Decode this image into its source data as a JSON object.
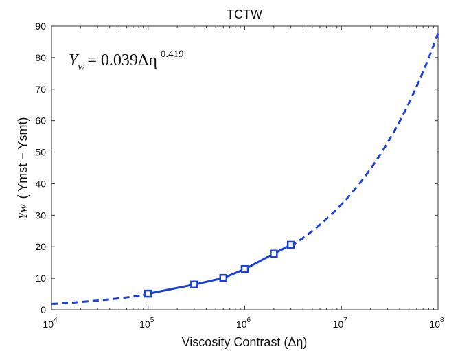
{
  "chart_data": {
    "type": "line",
    "title": "TCTW",
    "xlabel": "Viscosity Contrast (Δη)",
    "ylabel": {
      "symbol": "Yw",
      "text": "( Ymst − Ysmt)"
    },
    "xscale": "log",
    "xlim": [
      10000,
      100000000
    ],
    "ylim": [
      0,
      90
    ],
    "x_ticks": [
      {
        "value": 10000,
        "base": "10",
        "exp": "4"
      },
      {
        "value": 100000,
        "base": "10",
        "exp": "5"
      },
      {
        "value": 1000000,
        "base": "10",
        "exp": "6"
      },
      {
        "value": 10000000,
        "base": "10",
        "exp": "7"
      },
      {
        "value": 100000000,
        "base": "10",
        "exp": "8"
      }
    ],
    "y_ticks": [
      0,
      10,
      20,
      30,
      40,
      50,
      60,
      70,
      80,
      90
    ],
    "grid": false,
    "color": "#1a3fe0",
    "equation": {
      "lhs": "Y",
      "lhs_sub": "w",
      "rhs": "= 0.039Δη",
      "exponent": "0.419"
    },
    "series": [
      {
        "style": "solid-with-square-markers",
        "points": [
          {
            "x": 100000,
            "y": 5.1
          },
          {
            "x": 300000,
            "y": 8.0
          },
          {
            "x": 600000,
            "y": 10.1
          },
          {
            "x": 1000000,
            "y": 12.9
          },
          {
            "x": 2000000,
            "y": 17.8
          },
          {
            "x": 3000000,
            "y": 20.6
          }
        ]
      },
      {
        "style": "dashed-fit",
        "coefficient": 0.039,
        "exponent": 0.419,
        "segments": [
          [
            10000,
            100000
          ],
          [
            3000000,
            100000000
          ]
        ]
      }
    ]
  }
}
